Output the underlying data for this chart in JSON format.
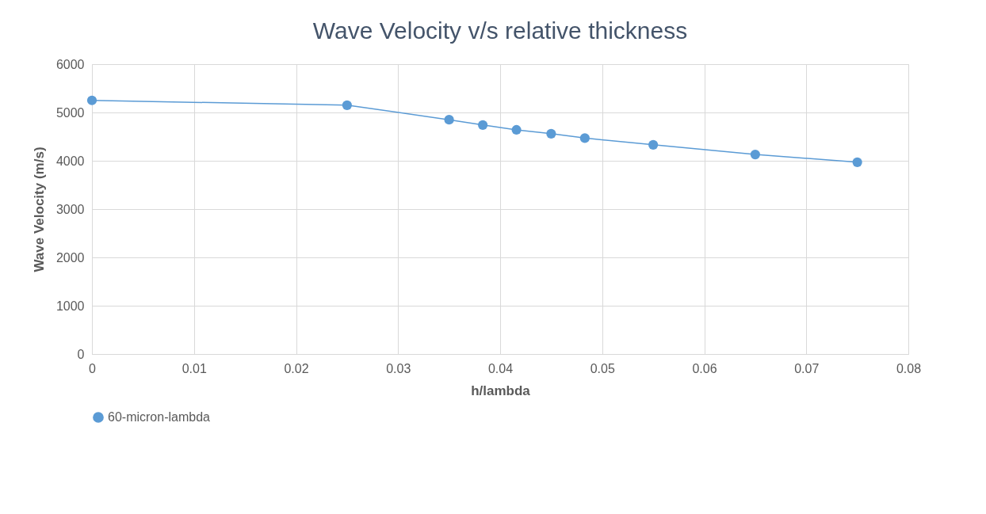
{
  "chart_data": {
    "type": "line",
    "title": "Wave Velocity v/s relative thickness",
    "xlabel": "h/lambda",
    "ylabel": "Wave Velocity (m/s)",
    "x": [
      0,
      0.025,
      0.035,
      0.0383,
      0.0416,
      0.045,
      0.0483,
      0.055,
      0.065,
      0.075
    ],
    "series": [
      {
        "name": "60-micron-lambda",
        "color": "#5b9bd5",
        "values": [
          5250,
          5150,
          4850,
          4740,
          4640,
          4560,
          4470,
          4330,
          4130,
          3970
        ]
      }
    ],
    "xlim": [
      0,
      0.08
    ],
    "xticks": [
      0,
      0.01,
      0.02,
      0.03,
      0.04,
      0.05,
      0.06,
      0.07,
      0.08
    ],
    "ylim": [
      0,
      6000
    ],
    "yticks": [
      0,
      1000,
      2000,
      3000,
      4000,
      5000,
      6000
    ],
    "grid": true,
    "legend": "bottom",
    "marker": "circle",
    "line_style": "solid"
  }
}
